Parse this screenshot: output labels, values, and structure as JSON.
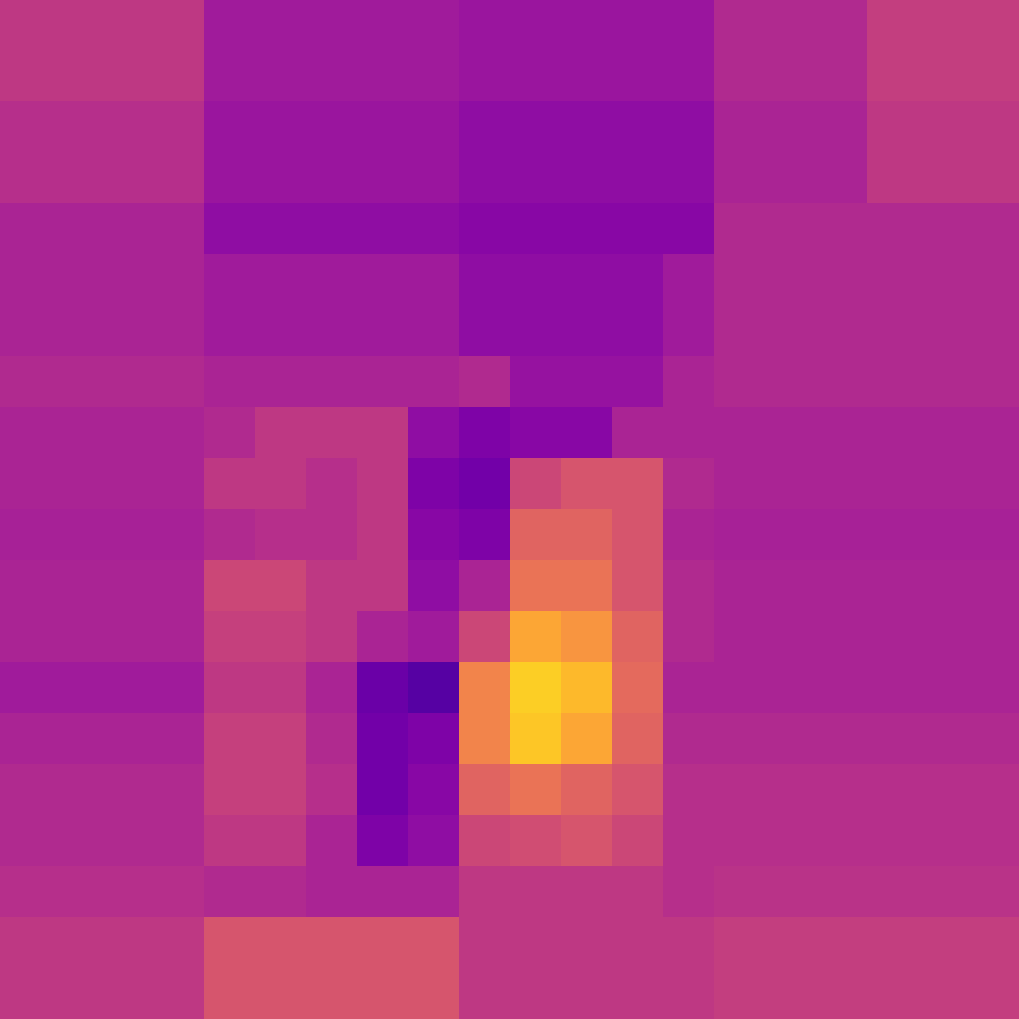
{
  "chart_data": {
    "type": "heatmap",
    "color": "plasma",
    "tick_labels": false,
    "color_range": [
      0,
      1
    ],
    "cells": [
      [
        0.45,
        0.45,
        0.45,
        0.45,
        0.35,
        0.35,
        0.35,
        0.35,
        0.35,
        0.33,
        0.33,
        0.33,
        0.33,
        0.33,
        0.4,
        0.4,
        0.4,
        0.47,
        0.47,
        0.47
      ],
      [
        0.45,
        0.45,
        0.45,
        0.45,
        0.35,
        0.35,
        0.35,
        0.35,
        0.35,
        0.33,
        0.33,
        0.33,
        0.33,
        0.33,
        0.4,
        0.4,
        0.4,
        0.47,
        0.47,
        0.47
      ],
      [
        0.42,
        0.42,
        0.42,
        0.42,
        0.33,
        0.33,
        0.33,
        0.33,
        0.33,
        0.3,
        0.3,
        0.3,
        0.3,
        0.3,
        0.38,
        0.38,
        0.38,
        0.45,
        0.45,
        0.45
      ],
      [
        0.42,
        0.42,
        0.42,
        0.42,
        0.33,
        0.33,
        0.33,
        0.33,
        0.33,
        0.3,
        0.3,
        0.3,
        0.3,
        0.3,
        0.38,
        0.38,
        0.38,
        0.45,
        0.45,
        0.45
      ],
      [
        0.38,
        0.38,
        0.38,
        0.38,
        0.3,
        0.3,
        0.3,
        0.3,
        0.3,
        0.28,
        0.28,
        0.28,
        0.28,
        0.28,
        0.4,
        0.4,
        0.4,
        0.4,
        0.4,
        0.4
      ],
      [
        0.38,
        0.38,
        0.38,
        0.38,
        0.35,
        0.35,
        0.35,
        0.35,
        0.35,
        0.3,
        0.3,
        0.3,
        0.3,
        0.35,
        0.4,
        0.4,
        0.4,
        0.4,
        0.4,
        0.4
      ],
      [
        0.38,
        0.38,
        0.38,
        0.38,
        0.35,
        0.35,
        0.35,
        0.35,
        0.35,
        0.3,
        0.3,
        0.3,
        0.3,
        0.35,
        0.4,
        0.4,
        0.4,
        0.4,
        0.4,
        0.4
      ],
      [
        0.4,
        0.4,
        0.4,
        0.4,
        0.38,
        0.38,
        0.38,
        0.38,
        0.38,
        0.4,
        0.32,
        0.32,
        0.32,
        0.38,
        0.4,
        0.4,
        0.4,
        0.4,
        0.4,
        0.4
      ],
      [
        0.38,
        0.38,
        0.38,
        0.38,
        0.4,
        0.45,
        0.45,
        0.45,
        0.3,
        0.25,
        0.28,
        0.28,
        0.38,
        0.38,
        0.38,
        0.38,
        0.38,
        0.38,
        0.38,
        0.38
      ],
      [
        0.38,
        0.38,
        0.38,
        0.38,
        0.45,
        0.45,
        0.42,
        0.45,
        0.25,
        0.22,
        0.5,
        0.55,
        0.55,
        0.4,
        0.38,
        0.38,
        0.38,
        0.38,
        0.38,
        0.38
      ],
      [
        0.37,
        0.37,
        0.37,
        0.37,
        0.4,
        0.42,
        0.42,
        0.45,
        0.28,
        0.25,
        0.6,
        0.6,
        0.55,
        0.38,
        0.37,
        0.37,
        0.37,
        0.37,
        0.37,
        0.37
      ],
      [
        0.38,
        0.38,
        0.38,
        0.38,
        0.5,
        0.5,
        0.45,
        0.45,
        0.3,
        0.38,
        0.65,
        0.65,
        0.55,
        0.4,
        0.38,
        0.38,
        0.38,
        0.38,
        0.38,
        0.38
      ],
      [
        0.38,
        0.38,
        0.38,
        0.38,
        0.48,
        0.48,
        0.45,
        0.38,
        0.35,
        0.5,
        0.8,
        0.75,
        0.6,
        0.4,
        0.38,
        0.38,
        0.38,
        0.38,
        0.38,
        0.38
      ],
      [
        0.35,
        0.35,
        0.35,
        0.35,
        0.45,
        0.45,
        0.38,
        0.2,
        0.15,
        0.7,
        0.9,
        0.85,
        0.62,
        0.38,
        0.38,
        0.38,
        0.38,
        0.38,
        0.38,
        0.38
      ],
      [
        0.38,
        0.38,
        0.38,
        0.38,
        0.48,
        0.48,
        0.4,
        0.22,
        0.25,
        0.7,
        0.88,
        0.8,
        0.6,
        0.4,
        0.4,
        0.4,
        0.4,
        0.4,
        0.4,
        0.4
      ],
      [
        0.4,
        0.4,
        0.4,
        0.4,
        0.48,
        0.48,
        0.42,
        0.22,
        0.28,
        0.6,
        0.65,
        0.6,
        0.55,
        0.42,
        0.42,
        0.42,
        0.42,
        0.42,
        0.42,
        0.42
      ],
      [
        0.4,
        0.4,
        0.4,
        0.4,
        0.45,
        0.45,
        0.38,
        0.25,
        0.3,
        0.5,
        0.52,
        0.55,
        0.5,
        0.42,
        0.42,
        0.42,
        0.42,
        0.42,
        0.42,
        0.42
      ],
      [
        0.42,
        0.42,
        0.42,
        0.42,
        0.4,
        0.4,
        0.38,
        0.38,
        0.38,
        0.45,
        0.45,
        0.45,
        0.45,
        0.42,
        0.43,
        0.43,
        0.43,
        0.43,
        0.43,
        0.43
      ],
      [
        0.45,
        0.45,
        0.45,
        0.45,
        0.55,
        0.55,
        0.55,
        0.55,
        0.55,
        0.45,
        0.45,
        0.45,
        0.45,
        0.45,
        0.47,
        0.47,
        0.47,
        0.47,
        0.47,
        0.47
      ],
      [
        0.45,
        0.45,
        0.45,
        0.45,
        0.55,
        0.55,
        0.55,
        0.55,
        0.55,
        0.45,
        0.45,
        0.45,
        0.45,
        0.45,
        0.47,
        0.47,
        0.47,
        0.47,
        0.47,
        0.47
      ]
    ]
  }
}
